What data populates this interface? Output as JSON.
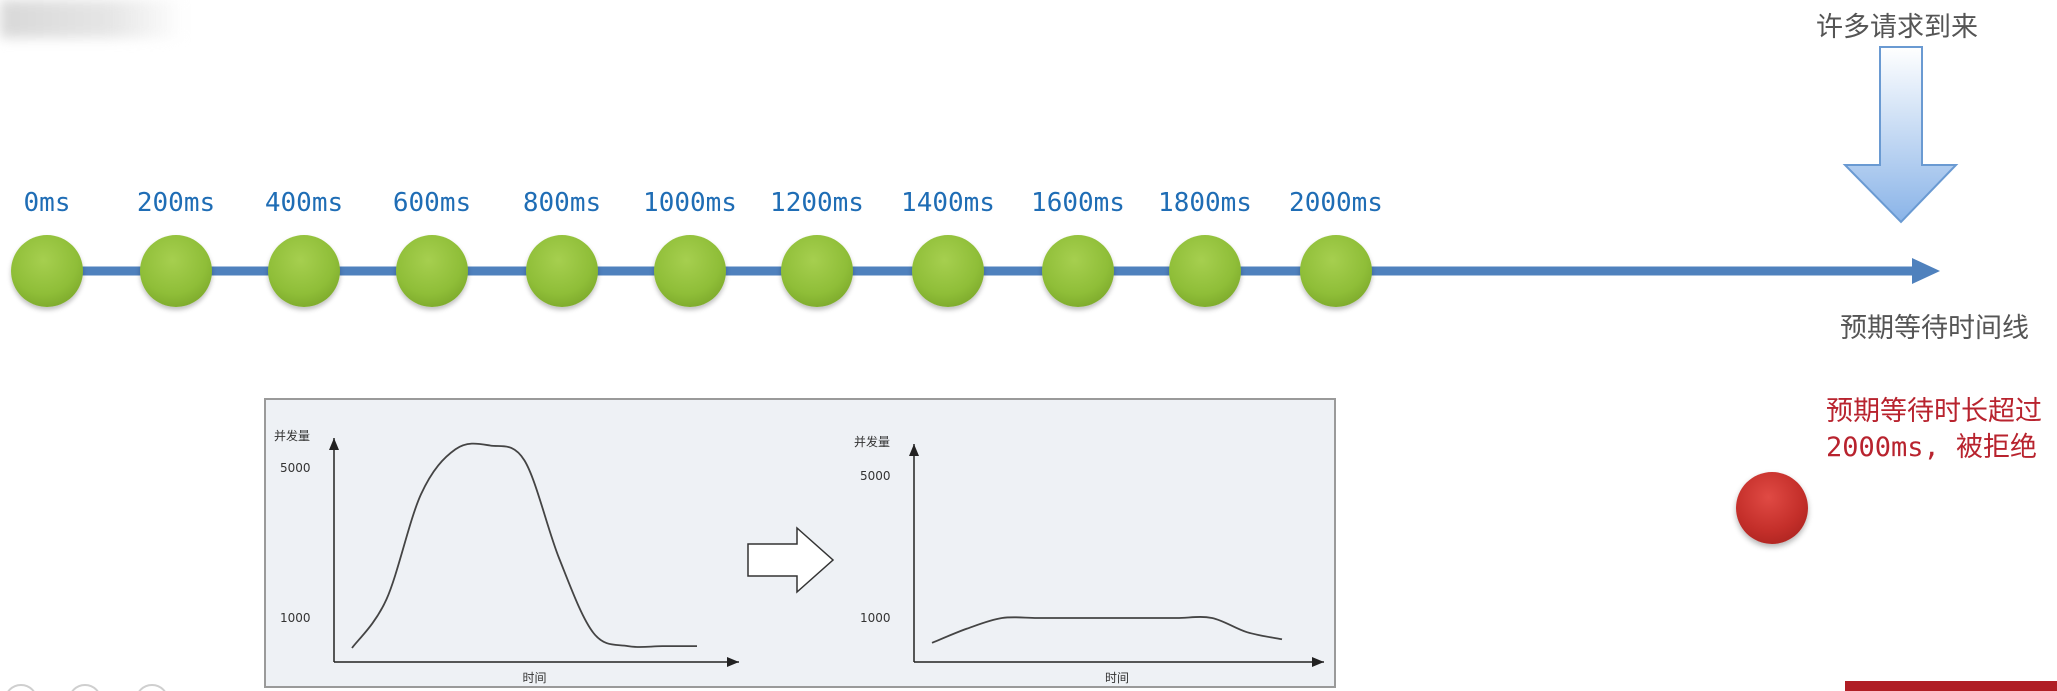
{
  "timeline": {
    "ticks": [
      "0ms",
      "200ms",
      "400ms",
      "600ms",
      "800ms",
      "1000ms",
      "1200ms",
      "1400ms",
      "1600ms",
      "1800ms",
      "2000ms"
    ],
    "axis_label": "预期等待时间线",
    "incoming_label": "许多请求到来",
    "reject_line1": "预期等待时长超过",
    "reject_line2": "2000ms, 被拒绝",
    "colors": {
      "axis": "#4f81bd",
      "dot": "#8fbe38",
      "tick_text": "#1f6db5",
      "reject_text": "#b8232e",
      "reject_ball": "#c42f2a"
    }
  },
  "chart_data": [
    {
      "type": "line",
      "ylabel": "并发量",
      "xlabel": "时间",
      "yticks": [
        "5000",
        "1000"
      ],
      "x": [
        0,
        1,
        2,
        3,
        4,
        5,
        6,
        7,
        8,
        9,
        10
      ],
      "values": [
        200,
        1500,
        4300,
        5500,
        5600,
        5200,
        2600,
        600,
        250,
        250,
        250
      ]
    },
    {
      "type": "line",
      "ylabel": "并发量",
      "xlabel": "时间",
      "yticks": [
        "5000",
        "1000"
      ],
      "x": [
        0,
        1,
        2,
        3,
        4,
        5,
        6,
        7,
        8,
        9,
        10
      ],
      "values": [
        300,
        700,
        1000,
        1000,
        1000,
        1000,
        1000,
        1000,
        1000,
        600,
        400
      ]
    }
  ],
  "icons": [
    "arrow-down-icon",
    "arrow-right-icon"
  ]
}
